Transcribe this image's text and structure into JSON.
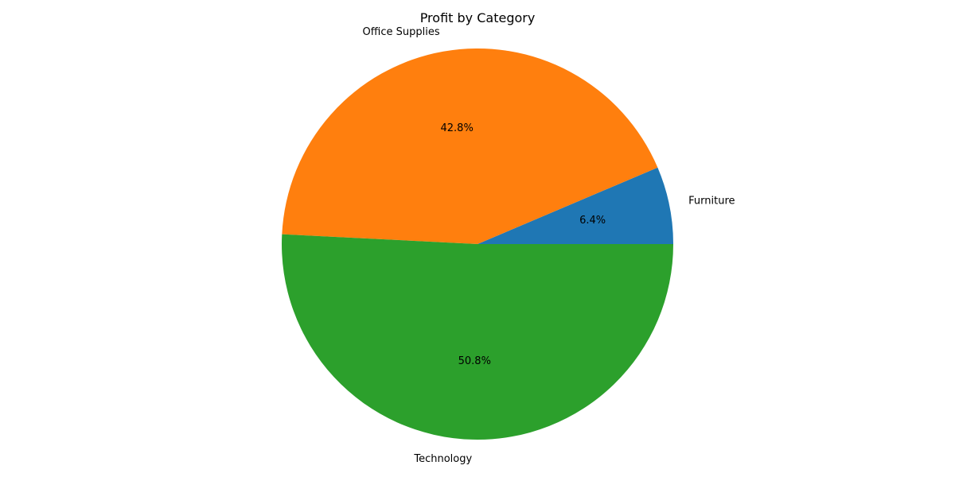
{
  "chart_data": {
    "type": "pie",
    "title": "Profit by Category",
    "categories": [
      "Furniture",
      "Office Supplies",
      "Technology"
    ],
    "values": [
      6.4,
      42.8,
      50.8
    ],
    "value_labels": [
      "6.4%",
      "42.8%",
      "50.8%"
    ],
    "colors": [
      "#1f77b4",
      "#ff7f0e",
      "#2ca02c"
    ],
    "start_angle_deg": 0,
    "direction": "counterclockwise",
    "legend": "none"
  }
}
